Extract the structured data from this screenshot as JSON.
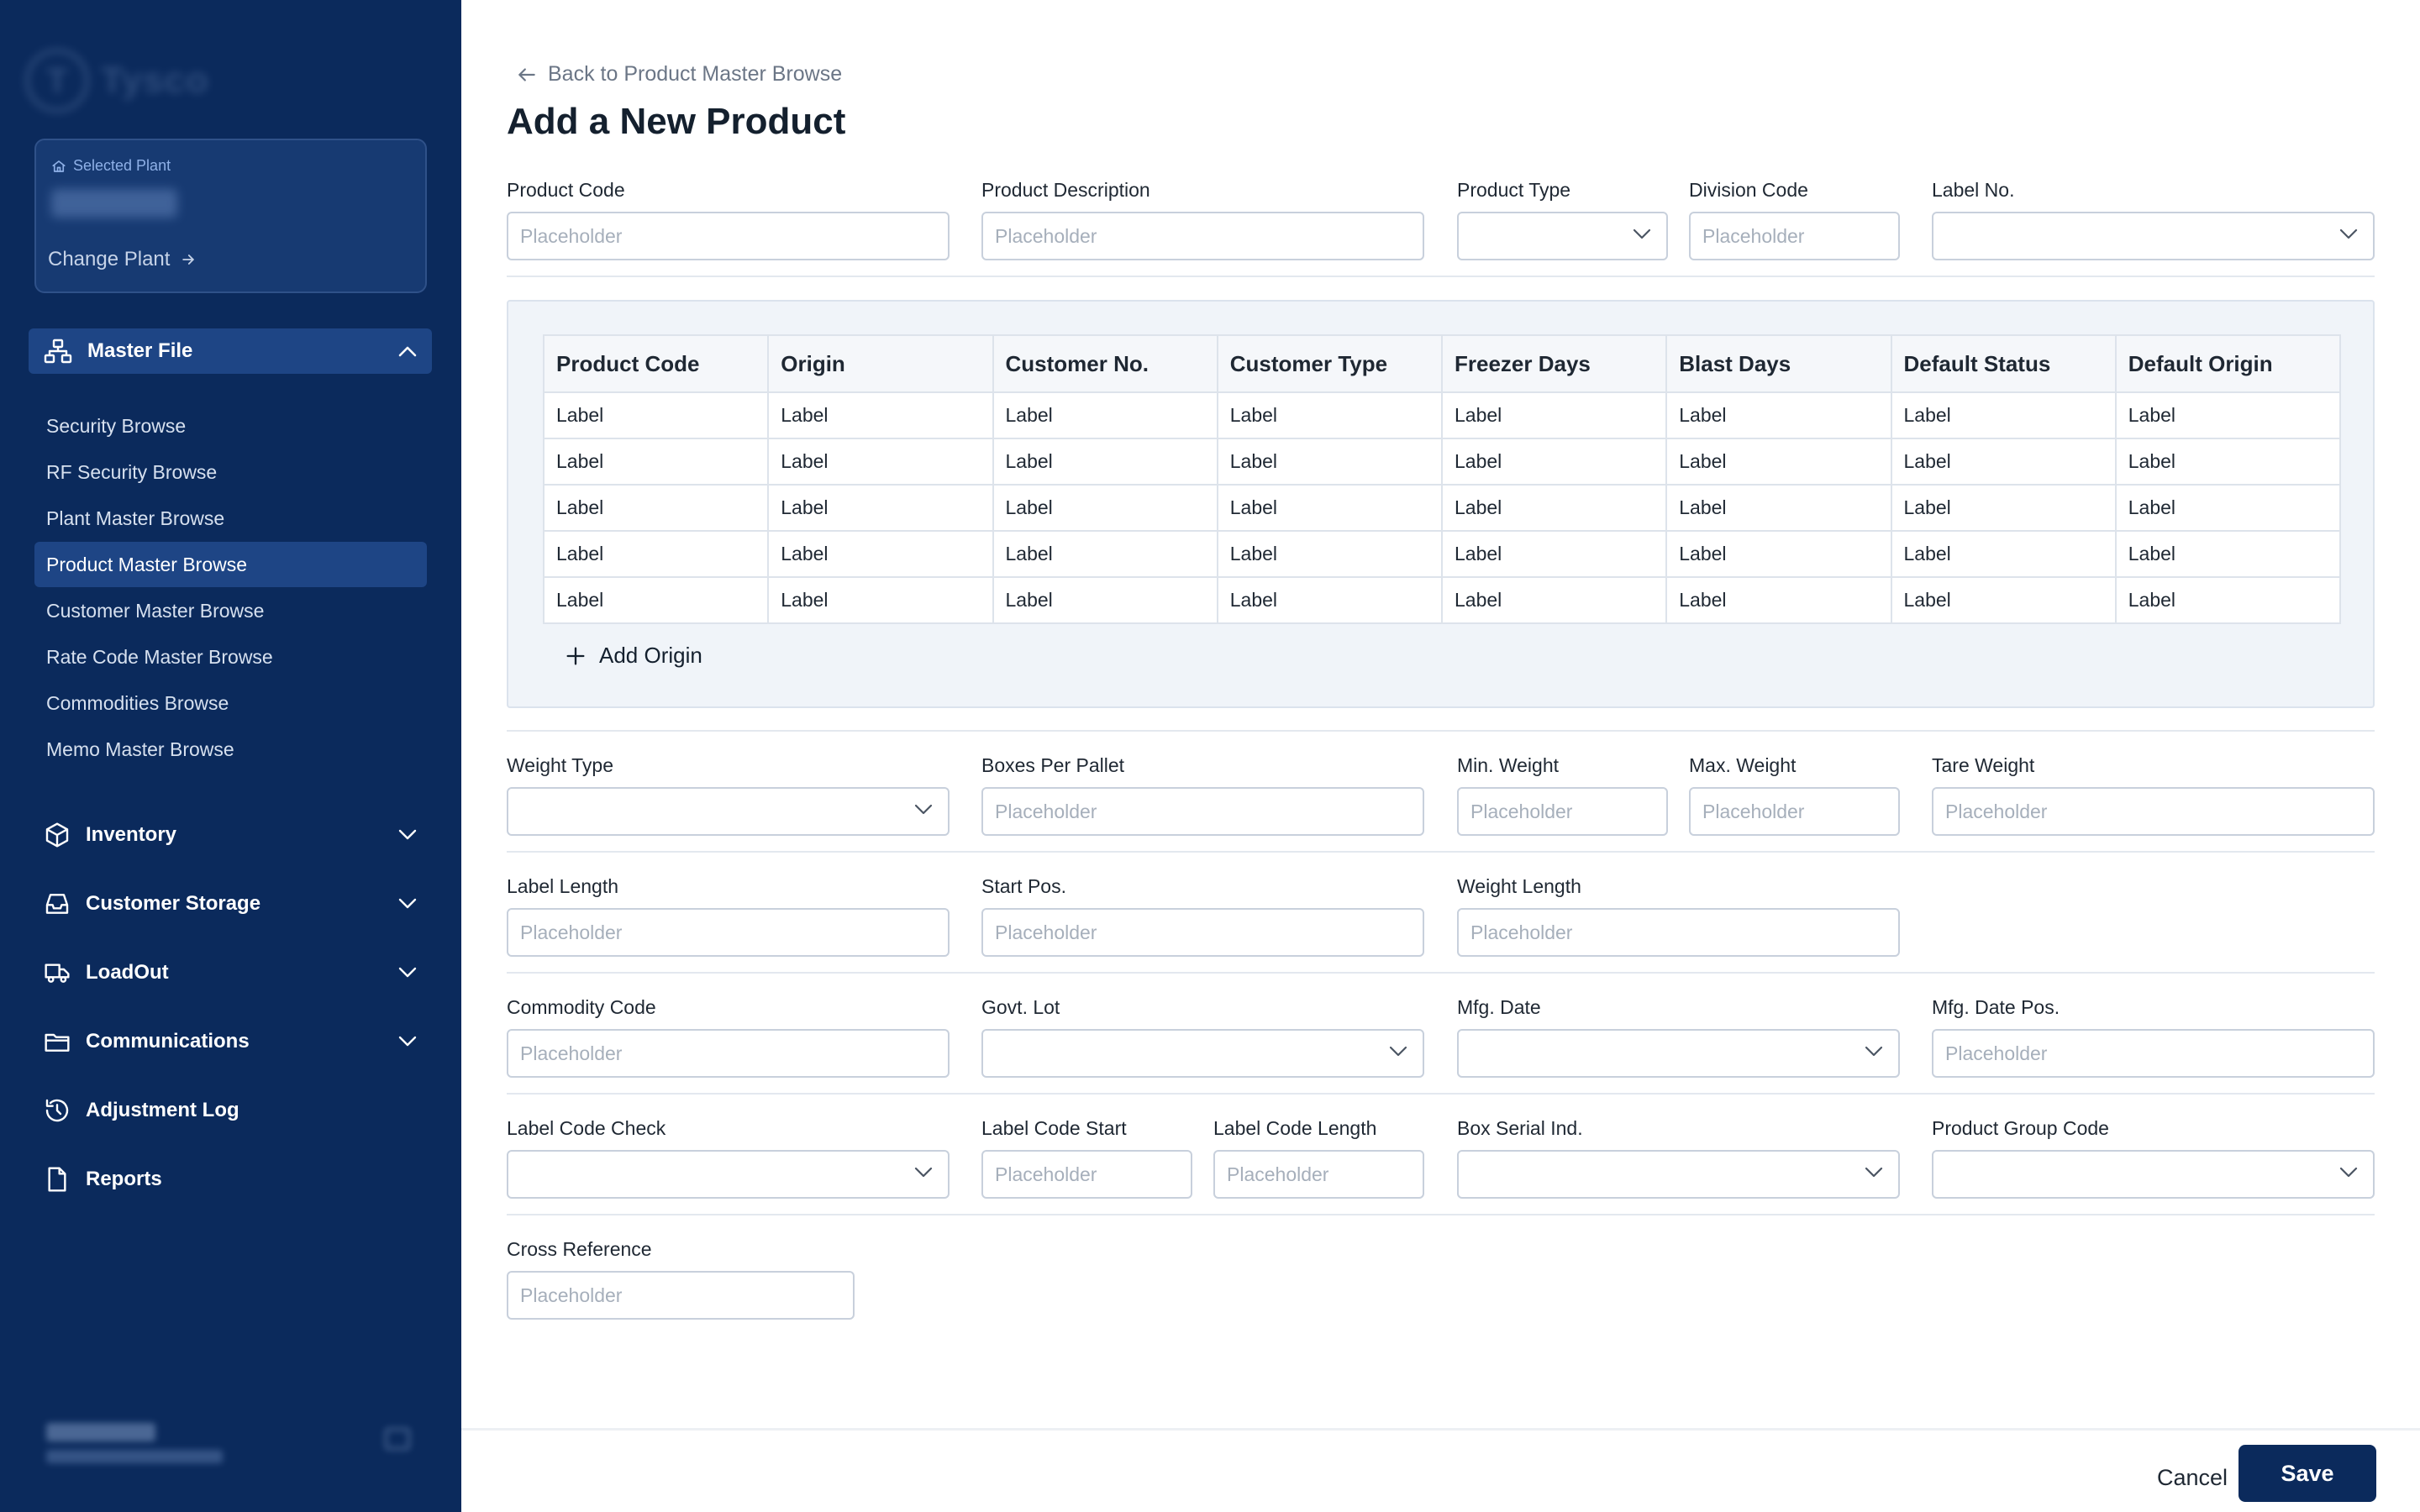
{
  "brand": {
    "logo_letter": "T",
    "name": "Tysco"
  },
  "plant": {
    "label": "Selected Plant",
    "name": "0001 Plant",
    "change_label": "Change Plant"
  },
  "sidebar": {
    "master_file": {
      "label": "Master File",
      "items": [
        {
          "label": "Security Browse"
        },
        {
          "label": "RF Security Browse"
        },
        {
          "label": "Plant Master Browse"
        },
        {
          "label": "Product Master Browse",
          "active": true
        },
        {
          "label": "Customer Master Browse"
        },
        {
          "label": "Rate Code Master Browse"
        },
        {
          "label": "Commodities Browse"
        },
        {
          "label": "Memo Master Browse"
        }
      ]
    },
    "nav": [
      {
        "label": "Inventory",
        "icon": "box-icon"
      },
      {
        "label": "Customer Storage",
        "icon": "inbox-icon"
      },
      {
        "label": "LoadOut",
        "icon": "truck-icon"
      },
      {
        "label": "Communications",
        "icon": "folder-icon"
      },
      {
        "label": "Adjustment Log",
        "icon": "history-icon"
      },
      {
        "label": "Reports",
        "icon": "file-icon"
      }
    ],
    "user": {
      "name": "Dave Flynn",
      "email": "dave.flynn@tysco.com"
    }
  },
  "page": {
    "back_label": "Back to Product Master Browse",
    "title": "Add a New Product"
  },
  "form": {
    "placeholder": "Placeholder",
    "product_code": "Product Code",
    "product_description": "Product Description",
    "product_type": "Product Type",
    "division_code": "Division Code",
    "label_no": "Label No.",
    "weight_type": "Weight Type",
    "boxes_per_pallet": "Boxes Per Pallet",
    "min_weight": "Min. Weight",
    "max_weight": "Max. Weight",
    "tare_weight": "Tare Weight",
    "label_length": "Label Length",
    "start_pos": "Start Pos.",
    "weight_length": "Weight Length",
    "commodity_code": "Commodity Code",
    "govt_lot": "Govt. Lot",
    "mfg_date": "Mfg. Date",
    "mfg_date_pos": "Mfg. Date Pos.",
    "label_code_check": "Label Code Check",
    "label_code_start": "Label Code Start",
    "label_code_length": "Label Code Length",
    "box_serial_ind": "Box Serial Ind.",
    "product_group_code": "Product Group Code",
    "cross_reference": "Cross Reference"
  },
  "origin_table": {
    "headers": [
      "Product Code",
      "Origin",
      "Customer No.",
      "Customer Type",
      "Freezer Days",
      "Blast Days",
      "Default Status",
      "Default Origin"
    ],
    "rows": [
      [
        "Label",
        "Label",
        "Label",
        "Label",
        "Label",
        "Label",
        "Label",
        "Label"
      ],
      [
        "Label",
        "Label",
        "Label",
        "Label",
        "Label",
        "Label",
        "Label",
        "Label"
      ],
      [
        "Label",
        "Label",
        "Label",
        "Label",
        "Label",
        "Label",
        "Label",
        "Label"
      ],
      [
        "Label",
        "Label",
        "Label",
        "Label",
        "Label",
        "Label",
        "Label",
        "Label"
      ],
      [
        "Label",
        "Label",
        "Label",
        "Label",
        "Label",
        "Label",
        "Label",
        "Label"
      ]
    ],
    "add_label": "Add Origin"
  },
  "footer": {
    "cancel_label": "Cancel",
    "save_label": "Save"
  },
  "colors": {
    "sidebar_bg": "#0b2a5c",
    "sidebar_active": "#1e4585",
    "primary_button": "#0b2a5c",
    "panel_bg": "#f0f4f9"
  }
}
